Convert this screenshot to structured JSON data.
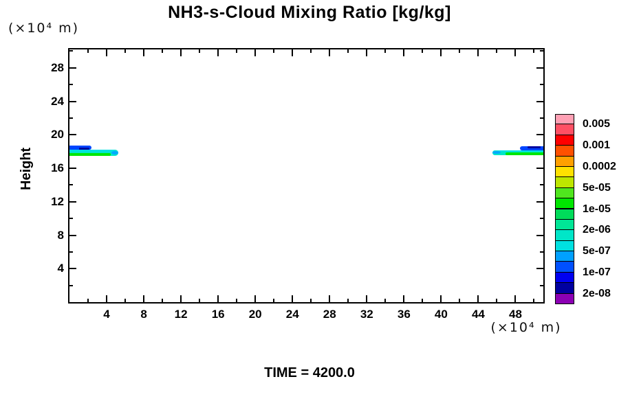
{
  "chart_data": {
    "type": "contour",
    "title": "NH3-s-Cloud Mixing Ratio [kg/kg]",
    "ylabel": "Height",
    "y_axis_unit": "(×10⁴  m)",
    "x_axis_unit": "(×10⁴  m)",
    "time_label": "TIME = 4200.0",
    "xlim": [
      0,
      51
    ],
    "ylim": [
      0,
      30.2
    ],
    "grid": false,
    "x_major_ticks": [
      4,
      8,
      12,
      16,
      20,
      24,
      28,
      32,
      36,
      40,
      44,
      48
    ],
    "x_minor_ticks": [
      2,
      6,
      10,
      14,
      18,
      22,
      26,
      30,
      34,
      38,
      42,
      46,
      50
    ],
    "y_major_ticks": [
      4,
      8,
      12,
      16,
      20,
      24,
      28
    ],
    "y_minor_ticks": [
      2,
      6,
      10,
      14,
      18,
      22,
      26,
      30
    ],
    "colorbar": {
      "position": "right",
      "labels": [
        "0.005",
        "0.001",
        "0.0002",
        "5e-05",
        "1e-05",
        "2e-06",
        "5e-07",
        "1e-07",
        "2e-08"
      ],
      "colors": [
        "#FFA0B4",
        "#FF5064",
        "#FF0000",
        "#FF5000",
        "#FFA000",
        "#FFE100",
        "#BEE600",
        "#50E61E",
        "#00E600",
        "#00DC5A",
        "#00E696",
        "#00E6C8",
        "#00E1E1",
        "#00A0FF",
        "#0050FF",
        "#0000F0",
        "#0000A0",
        "#8C00B4"
      ]
    },
    "features": [
      {
        "name": "left-cloud-band-teal",
        "x0": 0,
        "x1": 5.25,
        "y0": 17.5,
        "y1": 18.2,
        "color": "#00E6C8",
        "radius": "0 8px 8px 0"
      },
      {
        "name": "left-cloud-band-green",
        "x0": 0,
        "x1": 4.45,
        "y0": 17.5,
        "y1": 17.78,
        "color": "#00E600",
        "radius": "0 4px 4px 0"
      },
      {
        "name": "left-cloud-band-cyan",
        "x0": 0,
        "x1": 4.9,
        "y0": 17.97,
        "y1": 18.2,
        "color": "#00E1E1",
        "radius": "0 4px 4px 0"
      },
      {
        "name": "left-cloud-tip-blue",
        "x0": 4.5,
        "x1": 5.25,
        "y0": 17.62,
        "y1": 18.05,
        "color": "#00AAFF",
        "radius": "50%"
      },
      {
        "name": "left-cloud-band-blue",
        "x0": 0,
        "x1": 2.4,
        "y0": 18.2,
        "y1": 18.72,
        "color": "#0046FF",
        "radius": "0 6px 6px 0"
      },
      {
        "name": "left-cloud-band-navy",
        "x0": 1.05,
        "x1": 2.15,
        "y0": 18.2,
        "y1": 18.45,
        "color": "#0000A0",
        "radius": "0 4px 4px 0"
      },
      {
        "name": "right-cloud-band-teal",
        "x0": 45.55,
        "x1": 51,
        "y0": 17.58,
        "y1": 18.12,
        "color": "#00E6C8",
        "radius": "8px 0 0 8px"
      },
      {
        "name": "right-cloud-band-green",
        "x0": 46.9,
        "x1": 51,
        "y0": 17.58,
        "y1": 17.85,
        "color": "#00E600",
        "radius": "4px 0 0 4px"
      },
      {
        "name": "right-cloud-band-cyan",
        "x0": 46.1,
        "x1": 51,
        "y0": 17.95,
        "y1": 18.12,
        "color": "#00E1E1",
        "radius": "4px 0 0 4px"
      },
      {
        "name": "right-cloud-tip-blue",
        "x0": 45.55,
        "x1": 46.4,
        "y0": 17.7,
        "y1": 18.08,
        "color": "#00AAFF",
        "radius": "50%"
      },
      {
        "name": "right-cloud-band-blue",
        "x0": 48.45,
        "x1": 51,
        "y0": 18.12,
        "y1": 18.6,
        "color": "#0046FF",
        "radius": "6px 0 0 6px"
      },
      {
        "name": "right-cloud-band-navy",
        "x0": 49.3,
        "x1": 50.7,
        "y0": 18.38,
        "y1": 18.6,
        "color": "#0000A0",
        "radius": "4px 0 0 4px"
      }
    ]
  }
}
